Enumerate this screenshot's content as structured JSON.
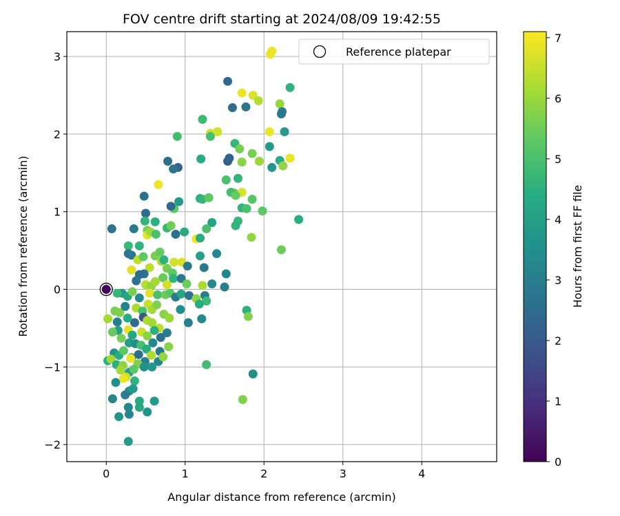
{
  "chart_data": {
    "type": "scatter",
    "title": "FOV centre drift starting at 2024/08/09 19:42:55",
    "xlabel": "Angular distance from reference (arcmin)",
    "ylabel": "Rotation from reference (arcmin)",
    "xlim": [
      -0.5,
      4.95
    ],
    "ylim": [
      -2.22,
      3.32
    ],
    "xticks": [
      0,
      1,
      2,
      3,
      4
    ],
    "yticks": [
      -2,
      -1,
      0,
      1,
      2,
      3
    ],
    "grid": true,
    "legend": {
      "position": "upper-right",
      "entries": [
        "Reference platepar"
      ]
    },
    "colorbar": {
      "label": "Hours from first FF file",
      "min": 0,
      "max": 7.1,
      "ticks": [
        0,
        1,
        2,
        3,
        4,
        5,
        6,
        7
      ],
      "colormap": "viridis"
    },
    "reference_point": {
      "x": 0,
      "y": 0,
      "hours": 0.1
    },
    "points": [
      [
        2.1,
        3.07,
        6.9
      ],
      [
        2.08,
        3.03,
        6.9
      ],
      [
        1.54,
        2.68,
        2.4
      ],
      [
        1.72,
        2.53,
        6.9
      ],
      [
        1.86,
        2.5,
        6.7
      ],
      [
        1.93,
        2.43,
        6.3
      ],
      [
        2.33,
        2.6,
        4.6
      ],
      [
        1.6,
        2.34,
        2.5
      ],
      [
        1.77,
        2.35,
        2.7
      ],
      [
        2.2,
        2.39,
        6.0
      ],
      [
        2.23,
        2.29,
        3.0
      ],
      [
        2.22,
        2.26,
        2.9
      ],
      [
        1.22,
        2.19,
        4.8
      ],
      [
        1.32,
        2.01,
        6.6
      ],
      [
        1.41,
        2.03,
        6.6
      ],
      [
        2.07,
        2.03,
        6.9
      ],
      [
        2.26,
        2.03,
        3.9
      ],
      [
        0.9,
        1.97,
        4.9
      ],
      [
        1.32,
        1.97,
        5.0
      ],
      [
        1.63,
        1.88,
        4.7
      ],
      [
        1.69,
        1.81,
        5.6
      ],
      [
        1.85,
        1.75,
        5.6
      ],
      [
        1.54,
        1.65,
        2.1
      ],
      [
        1.56,
        1.69,
        2.2
      ],
      [
        1.72,
        1.64,
        5.8
      ],
      [
        2.33,
        1.69,
        6.9
      ],
      [
        1.94,
        1.65,
        6.0
      ],
      [
        2.07,
        1.84,
        3.8
      ],
      [
        2.2,
        1.66,
        4.4
      ],
      [
        2.1,
        1.57,
        3.7
      ],
      [
        2.24,
        1.59,
        5.9
      ],
      [
        0.78,
        1.65,
        2.6
      ],
      [
        0.91,
        1.57,
        2.3
      ],
      [
        0.85,
        1.55,
        2.7
      ],
      [
        1.2,
        1.68,
        4.4
      ],
      [
        0.66,
        1.35,
        6.9
      ],
      [
        1.52,
        1.41,
        5.0
      ],
      [
        1.67,
        1.43,
        4.6
      ],
      [
        1.62,
        1.24,
        5.4
      ],
      [
        1.58,
        1.25,
        4.9
      ],
      [
        1.72,
        1.25,
        6.7
      ],
      [
        1.64,
        1.21,
        5.4
      ],
      [
        1.19,
        1.17,
        4.5
      ],
      [
        1.22,
        1.16,
        4.7
      ],
      [
        1.3,
        1.18,
        5.3
      ],
      [
        1.85,
        1.16,
        5.2
      ],
      [
        0.48,
        1.2,
        2.6
      ],
      [
        0.86,
        1.04,
        5.3
      ],
      [
        0.82,
        1.07,
        2.4
      ],
      [
        0.92,
        1.13,
        3.8
      ],
      [
        1.72,
        1.05,
        4.6
      ],
      [
        1.78,
        1.04,
        5.0
      ],
      [
        1.98,
        1.01,
        5.3
      ],
      [
        0.5,
        0.98,
        2.5
      ],
      [
        0.49,
        0.88,
        4.6
      ],
      [
        0.62,
        0.87,
        4.5
      ],
      [
        0.07,
        0.78,
        2.7
      ],
      [
        0.35,
        0.78,
        2.8
      ],
      [
        0.52,
        0.76,
        5.6
      ],
      [
        0.77,
        0.79,
        4.7
      ],
      [
        0.82,
        0.82,
        5.5
      ],
      [
        1.67,
        0.88,
        4.7
      ],
      [
        1.64,
        0.82,
        4.6
      ],
      [
        1.34,
        0.86,
        4.1
      ],
      [
        1.27,
        0.78,
        5.0
      ],
      [
        2.44,
        0.9,
        4.4
      ],
      [
        0.52,
        0.7,
        6.8
      ],
      [
        0.56,
        0.74,
        6.0
      ],
      [
        0.63,
        0.71,
        5.0
      ],
      [
        0.88,
        0.71,
        2.6
      ],
      [
        0.99,
        0.74,
        4.3
      ],
      [
        1.14,
        0.65,
        6.9
      ],
      [
        1.19,
        0.66,
        4.4
      ],
      [
        1.84,
        0.67,
        5.9
      ],
      [
        2.22,
        0.51,
        5.5
      ],
      [
        0.28,
        0.56,
        4.7
      ],
      [
        0.42,
        0.56,
        4.6
      ],
      [
        0.28,
        0.46,
        2.8
      ],
      [
        0.32,
        0.44,
        2.8
      ],
      [
        0.4,
        0.38,
        6.4
      ],
      [
        0.47,
        0.42,
        5.3
      ],
      [
        0.62,
        0.43,
        5.6
      ],
      [
        0.68,
        0.48,
        5.4
      ],
      [
        0.7,
        0.36,
        6.1
      ],
      [
        0.73,
        0.38,
        4.5
      ],
      [
        0.86,
        0.35,
        6.6
      ],
      [
        0.96,
        0.35,
        6.7
      ],
      [
        1.03,
        0.3,
        2.8
      ],
      [
        1.19,
        0.43,
        4.0
      ],
      [
        1.24,
        0.28,
        2.9
      ],
      [
        1.4,
        0.46,
        3.3
      ],
      [
        1.52,
        0.2,
        3.2
      ],
      [
        0.32,
        0.25,
        6.8
      ],
      [
        0.55,
        0.28,
        6.4
      ],
      [
        0.77,
        0.27,
        5.6
      ],
      [
        0.84,
        0.21,
        5.3
      ],
      [
        0.48,
        0.2,
        2.7
      ],
      [
        0.42,
        0.19,
        2.5
      ],
      [
        0.38,
        0.11,
        2.7
      ],
      [
        0.5,
        0.06,
        6.3
      ],
      [
        0.57,
        0.04,
        5.9
      ],
      [
        0.62,
        0.1,
        6.1
      ],
      [
        0.72,
        0.15,
        5.4
      ],
      [
        0.77,
        0.06,
        6.6
      ],
      [
        0.85,
        0.14,
        4.6
      ],
      [
        0.95,
        0.14,
        2.8
      ],
      [
        1.02,
        0.07,
        5.5
      ],
      [
        1.22,
        0.05,
        6.2
      ],
      [
        1.34,
        0.07,
        3.3
      ],
      [
        1.5,
        0.03,
        3.0
      ],
      [
        0.2,
        -0.05,
        3.7
      ],
      [
        0.14,
        -0.05,
        4.7
      ],
      [
        0.27,
        -0.09,
        4.2
      ],
      [
        0.33,
        -0.03,
        5.6
      ],
      [
        0.42,
        -0.11,
        3.3
      ],
      [
        0.55,
        -0.05,
        6.8
      ],
      [
        0.65,
        -0.07,
        5.0
      ],
      [
        0.75,
        -0.07,
        5.5
      ],
      [
        0.81,
        -0.05,
        5.2
      ],
      [
        0.88,
        -0.1,
        2.9
      ],
      [
        0.95,
        -0.06,
        4.2
      ],
      [
        1.05,
        -0.08,
        2.7
      ],
      [
        1.14,
        -0.12,
        5.8
      ],
      [
        1.25,
        -0.08,
        3.0
      ],
      [
        1.27,
        -0.15,
        4.8
      ],
      [
        1.18,
        -0.19,
        4.4
      ],
      [
        0.11,
        -0.28,
        5.6
      ],
      [
        0.17,
        -0.3,
        5.7
      ],
      [
        0.24,
        -0.22,
        3.1
      ],
      [
        0.38,
        -0.24,
        6.2
      ],
      [
        0.46,
        -0.28,
        5.0
      ],
      [
        0.53,
        -0.19,
        6.5
      ],
      [
        0.58,
        -0.26,
        6.1
      ],
      [
        0.64,
        -0.2,
        5.7
      ],
      [
        0.73,
        -0.32,
        5.8
      ],
      [
        0.8,
        -0.37,
        6.0
      ],
      [
        0.94,
        -0.26,
        3.4
      ],
      [
        1.04,
        -0.43,
        3.1
      ],
      [
        1.21,
        -0.38,
        3.3
      ],
      [
        1.78,
        -0.27,
        4.5
      ],
      [
        1.8,
        -0.35,
        5.7
      ],
      [
        0.02,
        -0.38,
        6.1
      ],
      [
        0.14,
        -0.42,
        3.1
      ],
      [
        0.27,
        -0.37,
        4.4
      ],
      [
        0.36,
        -0.43,
        2.5
      ],
      [
        0.47,
        -0.36,
        1.9
      ],
      [
        0.52,
        -0.4,
        6.2
      ],
      [
        0.58,
        -0.43,
        6.1
      ],
      [
        0.67,
        -0.5,
        6.4
      ],
      [
        0.77,
        -0.56,
        3.0
      ],
      [
        0.15,
        -0.53,
        4.0
      ],
      [
        0.28,
        -0.52,
        6.8
      ],
      [
        0.33,
        -0.59,
        4.2
      ],
      [
        0.45,
        -0.55,
        6.5
      ],
      [
        0.52,
        -0.6,
        5.8
      ],
      [
        0.61,
        -0.53,
        4.5
      ],
      [
        0.69,
        -0.62,
        2.6
      ],
      [
        0.08,
        -0.55,
        5.4
      ],
      [
        0.19,
        -0.63,
        5.6
      ],
      [
        0.29,
        -0.69,
        4.0
      ],
      [
        0.37,
        -0.7,
        3.5
      ],
      [
        0.44,
        -0.72,
        5.0
      ],
      [
        0.51,
        -0.77,
        4.4
      ],
      [
        0.59,
        -0.69,
        3.3
      ],
      [
        0.68,
        -0.8,
        2.9
      ],
      [
        0.79,
        -0.74,
        5.8
      ],
      [
        0.1,
        -0.82,
        3.6
      ],
      [
        0.16,
        -0.85,
        4.4
      ],
      [
        0.22,
        -0.79,
        5.3
      ],
      [
        0.32,
        -0.88,
        3.2
      ],
      [
        0.41,
        -0.84,
        2.6
      ],
      [
        0.49,
        -0.93,
        3.1
      ],
      [
        0.57,
        -0.85,
        6.2
      ],
      [
        0.66,
        -0.93,
        3.2
      ],
      [
        0.72,
        -0.87,
        5.9
      ],
      [
        0.02,
        -0.92,
        4.5
      ],
      [
        0.06,
        -0.9,
        6.1
      ],
      [
        0.13,
        -0.97,
        4.5
      ],
      [
        0.21,
        -0.98,
        5.8
      ],
      [
        0.31,
        -0.89,
        6.9
      ],
      [
        0.4,
        -0.96,
        5.7
      ],
      [
        0.48,
        -1.0,
        3.5
      ],
      [
        0.58,
        -1.0,
        3.7
      ],
      [
        0.18,
        -1.04,
        6.1
      ],
      [
        0.29,
        -1.07,
        4.0
      ],
      [
        0.35,
        -1.03,
        5.3
      ],
      [
        0.12,
        -1.2,
        3.5
      ],
      [
        0.25,
        -1.13,
        6.5
      ],
      [
        0.36,
        -1.18,
        4.6
      ],
      [
        0.22,
        -1.15,
        6.9
      ],
      [
        0.29,
        -1.31,
        3.5
      ],
      [
        0.34,
        -1.28,
        3.8
      ],
      [
        0.24,
        -1.36,
        3.0
      ],
      [
        0.08,
        -1.41,
        3.2
      ],
      [
        0.42,
        -1.44,
        4.3
      ],
      [
        0.61,
        -1.44,
        3.8
      ],
      [
        0.28,
        -1.52,
        3.3
      ],
      [
        0.42,
        -1.52,
        4.2
      ],
      [
        0.52,
        -1.58,
        3.6
      ],
      [
        0.16,
        -1.64,
        3.7
      ],
      [
        0.29,
        -1.61,
        3.2
      ],
      [
        0.28,
        -1.96,
        3.8
      ],
      [
        1.27,
        -0.97,
        4.9
      ],
      [
        1.86,
        -1.09,
        3.5
      ],
      [
        1.73,
        -1.42,
        5.7
      ]
    ]
  }
}
